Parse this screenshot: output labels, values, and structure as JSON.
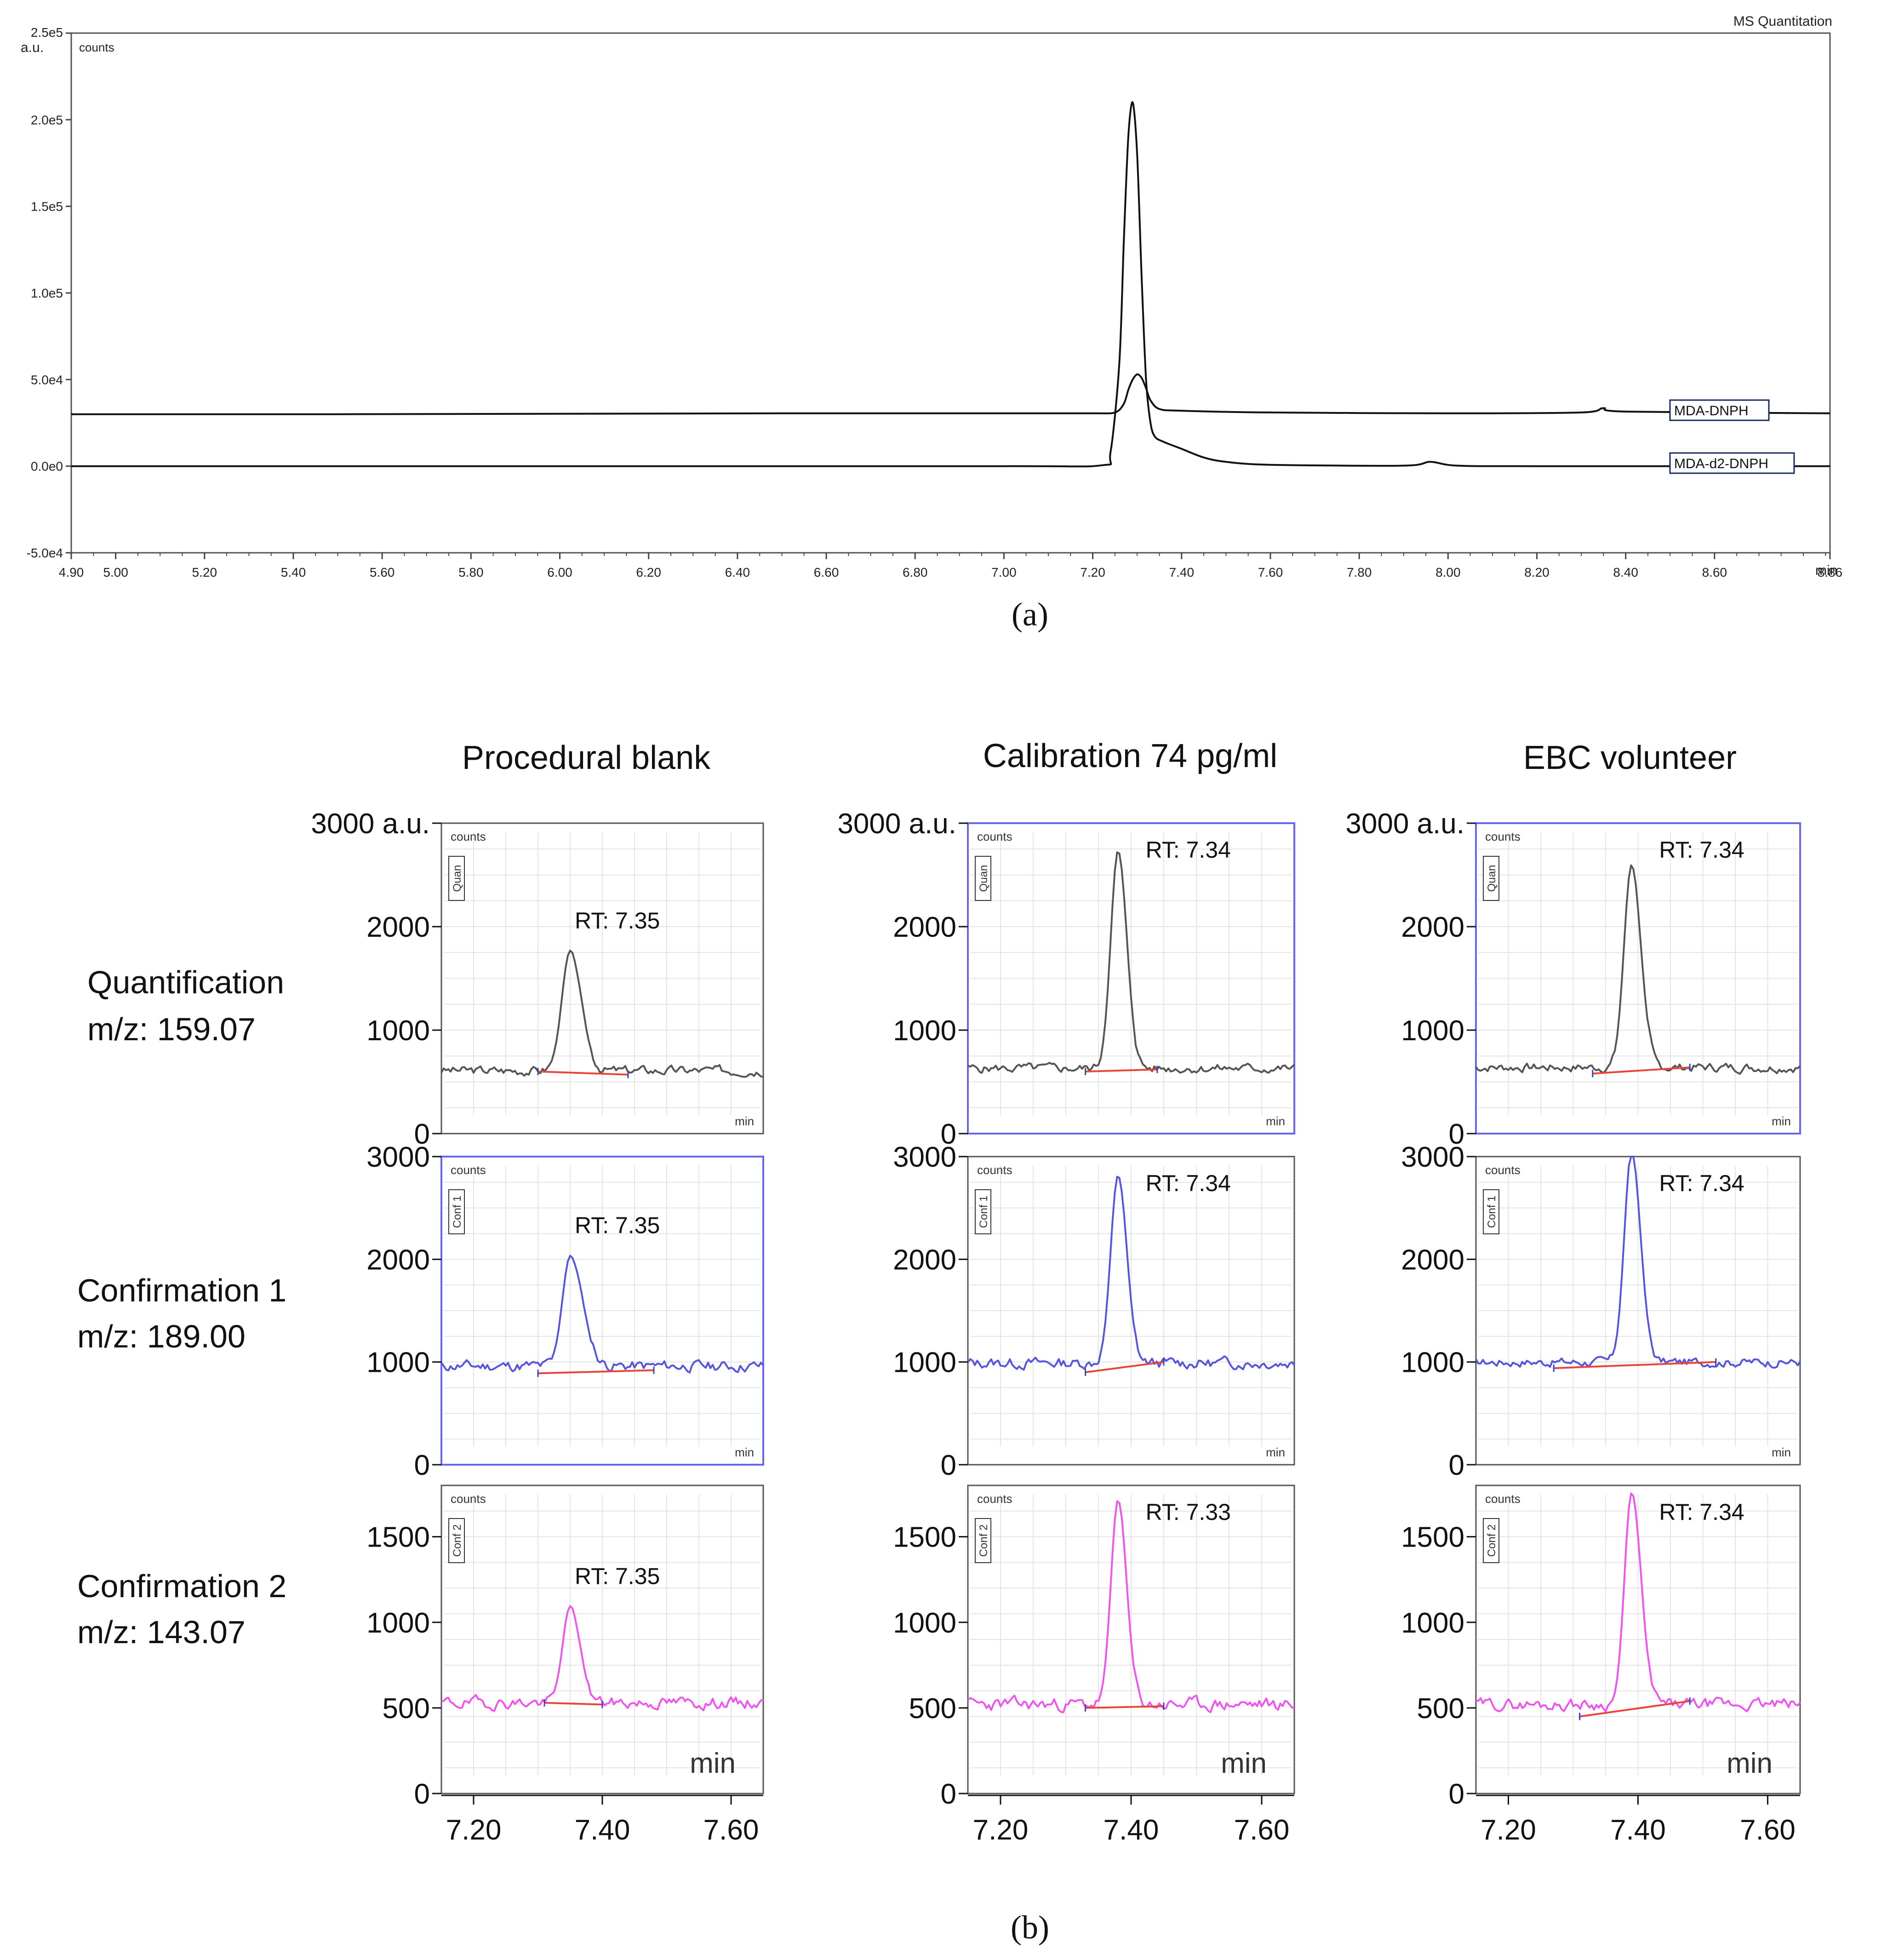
{
  "figure": {
    "caption_a": "(a)",
    "caption_b": "(b)"
  },
  "chart_data": [
    {
      "id": "panel-a",
      "type": "line",
      "title": "MS Quantitation",
      "ylabel_unit": "a.u.",
      "ylabel": "counts",
      "xlabel": "min",
      "xlim": [
        4.9,
        8.86
      ],
      "ylim": [
        -50000,
        250000
      ],
      "yticks": [
        -50000,
        0,
        50000,
        100000,
        150000,
        200000,
        250000
      ],
      "ytick_labels": [
        "-5.0e4",
        "0.0e0",
        "5.0e4",
        "1.0e5",
        "1.5e5",
        "2.0e5",
        "2.5e5"
      ],
      "xticks": [
        4.9,
        5.0,
        5.2,
        5.4,
        5.6,
        5.8,
        6.0,
        6.2,
        6.4,
        6.6,
        6.8,
        7.0,
        7.2,
        7.4,
        7.6,
        7.8,
        8.0,
        8.2,
        8.4,
        8.6,
        8.86
      ],
      "xtick_labels": [
        "4.90",
        "5.00",
        "5.20",
        "5.40",
        "5.60",
        "5.80",
        "6.00",
        "6.20",
        "6.40",
        "6.60",
        "6.80",
        "7.00",
        "7.20",
        "7.40",
        "7.60",
        "7.80",
        "8.00",
        "8.20",
        "8.40",
        "8.60",
        "8.86"
      ],
      "series": [
        {
          "name": "MDA-DNPH",
          "color": "#111111",
          "x": [
            4.9,
            5.5,
            6.5,
            7.0,
            7.2,
            7.25,
            7.27,
            7.28,
            7.29,
            7.3,
            7.31,
            7.32,
            7.33,
            7.35,
            7.4,
            7.6,
            8.0,
            8.3,
            8.35,
            8.4,
            8.86
          ],
          "y": [
            30000,
            30000,
            30500,
            30500,
            30500,
            31000,
            36000,
            44000,
            50000,
            53000,
            51000,
            45000,
            38000,
            33000,
            32000,
            31000,
            30500,
            31000,
            33500,
            31500,
            30500
          ]
        },
        {
          "name": "MDA-d2-DNPH",
          "color": "#111111",
          "x": [
            4.9,
            6.0,
            7.0,
            7.22,
            7.24,
            7.26,
            7.27,
            7.28,
            7.29,
            7.3,
            7.31,
            7.32,
            7.33,
            7.34,
            7.36,
            7.4,
            7.45,
            7.5,
            7.6,
            7.9,
            7.96,
            8.02,
            8.2,
            8.86
          ],
          "y": [
            0,
            0,
            0,
            500,
            8000,
            60000,
            130000,
            190000,
            210000,
            180000,
            110000,
            50000,
            25000,
            17000,
            14000,
            10000,
            5000,
            2500,
            800,
            300,
            2500,
            300,
            0,
            0
          ]
        }
      ]
    },
    {
      "id": "panel-b",
      "type": "line",
      "columns": [
        "Procedural blank",
        "Calibration 74 pg/ml",
        "EBC volunteer"
      ],
      "rows": [
        {
          "label1": "Quantification",
          "label2": "m/z: 159.07",
          "tag": "Quan",
          "color": "#555555"
        },
        {
          "label1": "Confirmation 1",
          "label2": "m/z: 189.00",
          "tag": "Conf 1",
          "color": "#5555dd"
        },
        {
          "label1": "Confirmation 2",
          "label2": "m/z: 143.07",
          "tag": "Conf 2",
          "color": "#ee55ee"
        }
      ],
      "xlabel": "min",
      "xlim": [
        7.15,
        7.65
      ],
      "xticks": [
        7.2,
        7.4,
        7.6
      ],
      "xtick_labels": [
        "7.20",
        "7.40",
        "7.60"
      ],
      "ylabel_unit": "a.u.",
      "panel_ylabel": "counts",
      "panels": [
        {
          "row": 0,
          "col": 0,
          "ylim": [
            0,
            3000
          ],
          "yticks": [
            0,
            1000,
            2000,
            3000
          ],
          "ytick_labels": [
            "0",
            "1000",
            "2000",
            "3000"
          ],
          "rt_label": "RT: 7.35",
          "apex_x": 7.35,
          "apex_y": 1760,
          "baseline_y": 610,
          "width": 0.038,
          "tail": 0.35,
          "noise_amp": 45,
          "seed": 3,
          "peak_start": 7.3,
          "peak_end": 7.44,
          "base_start_y": 600,
          "base_end_y": 570,
          "show_unit": true,
          "blue_frame": false
        },
        {
          "row": 0,
          "col": 1,
          "ylim": [
            0,
            3000
          ],
          "yticks": [
            0,
            1000,
            2000,
            3000
          ],
          "ytick_labels": [
            "0",
            "1000",
            "2000",
            "3000"
          ],
          "rt_label": "RT: 7.34",
          "apex_x": 7.38,
          "apex_y": 2730,
          "baseline_y": 630,
          "width": 0.033,
          "tail": 0.2,
          "noise_amp": 45,
          "seed": 5,
          "peak_start": 7.33,
          "peak_end": 7.44,
          "base_start_y": 600,
          "base_end_y": 620,
          "show_unit": true,
          "blue_frame": true
        },
        {
          "row": 0,
          "col": 2,
          "ylim": [
            0,
            3000
          ],
          "yticks": [
            0,
            1000,
            2000,
            3000
          ],
          "ytick_labels": [
            "0",
            "1000",
            "2000",
            "3000"
          ],
          "rt_label": "RT: 7.34",
          "apex_x": 7.39,
          "apex_y": 2600,
          "baseline_y": 640,
          "width": 0.034,
          "tail": 0.25,
          "noise_amp": 45,
          "seed": 7,
          "peak_start": 7.33,
          "peak_end": 7.48,
          "base_start_y": 580,
          "base_end_y": 640,
          "show_unit": true,
          "blue_frame": true
        },
        {
          "row": 1,
          "col": 0,
          "ylim": [
            0,
            3000
          ],
          "yticks": [
            0,
            1000,
            2000,
            3000
          ],
          "ytick_labels": [
            "0",
            "1000",
            "2000",
            "3000"
          ],
          "rt_label": "RT: 7.35",
          "apex_x": 7.35,
          "apex_y": 2030,
          "baseline_y": 960,
          "width": 0.036,
          "tail": 0.6,
          "noise_amp": 55,
          "seed": 11,
          "peak_start": 7.3,
          "peak_end": 7.48,
          "base_start_y": 890,
          "base_end_y": 920,
          "show_unit": false,
          "blue_frame": true
        },
        {
          "row": 1,
          "col": 1,
          "ylim": [
            0,
            3000
          ],
          "yticks": [
            0,
            1000,
            2000,
            3000
          ],
          "ytick_labels": [
            "0",
            "1000",
            "2000",
            "3000"
          ],
          "rt_label": "RT: 7.34",
          "apex_x": 7.38,
          "apex_y": 2820,
          "baseline_y": 990,
          "width": 0.033,
          "tail": 0.2,
          "noise_amp": 55,
          "seed": 13,
          "peak_start": 7.33,
          "peak_end": 7.45,
          "base_start_y": 900,
          "base_end_y": 1000,
          "show_unit": false,
          "blue_frame": false
        },
        {
          "row": 1,
          "col": 2,
          "ylim": [
            0,
            3000
          ],
          "yticks": [
            0,
            1000,
            2000,
            3000
          ],
          "ytick_labels": [
            "0",
            "1000",
            "2000",
            "3000"
          ],
          "rt_label": "RT: 7.34",
          "apex_x": 7.39,
          "apex_y": 3050,
          "baseline_y": 1000,
          "width": 0.033,
          "tail": 0.25,
          "noise_amp": 45,
          "seed": 17,
          "peak_start": 7.27,
          "peak_end": 7.52,
          "base_start_y": 940,
          "base_end_y": 1000,
          "show_unit": false,
          "blue_frame": false
        },
        {
          "row": 2,
          "col": 0,
          "ylim": [
            0,
            1800
          ],
          "yticks": [
            0,
            500,
            1000,
            1500
          ],
          "ytick_labels": [
            "0",
            "500",
            "1000",
            "1500"
          ],
          "rt_label": "RT: 7.35",
          "apex_x": 7.35,
          "apex_y": 1090,
          "baseline_y": 530,
          "width": 0.035,
          "tail": 0.3,
          "noise_amp": 35,
          "seed": 19,
          "peak_start": 7.31,
          "peak_end": 7.4,
          "base_start_y": 530,
          "base_end_y": 520,
          "show_unit": false,
          "blue_frame": false
        },
        {
          "row": 2,
          "col": 1,
          "ylim": [
            0,
            1800
          ],
          "yticks": [
            0,
            500,
            1000,
            1500
          ],
          "ytick_labels": [
            "0",
            "500",
            "1000",
            "1500"
          ],
          "rt_label": "RT: 7.33",
          "apex_x": 7.38,
          "apex_y": 1720,
          "baseline_y": 520,
          "width": 0.032,
          "tail": 0.2,
          "noise_amp": 40,
          "seed": 23,
          "peak_start": 7.33,
          "peak_end": 7.45,
          "base_start_y": 500,
          "base_end_y": 510,
          "show_unit": false,
          "blue_frame": false
        },
        {
          "row": 2,
          "col": 2,
          "ylim": [
            0,
            1800
          ],
          "yticks": [
            0,
            500,
            1000,
            1500
          ],
          "ytick_labels": [
            "0",
            "500",
            "1000",
            "1500"
          ],
          "rt_label": "RT: 7.34",
          "apex_x": 7.39,
          "apex_y": 1760,
          "baseline_y": 520,
          "width": 0.032,
          "tail": 0.35,
          "noise_amp": 35,
          "seed": 29,
          "peak_start": 7.31,
          "peak_end": 7.48,
          "base_start_y": 450,
          "base_end_y": 540,
          "show_unit": false,
          "blue_frame": false
        }
      ]
    }
  ]
}
